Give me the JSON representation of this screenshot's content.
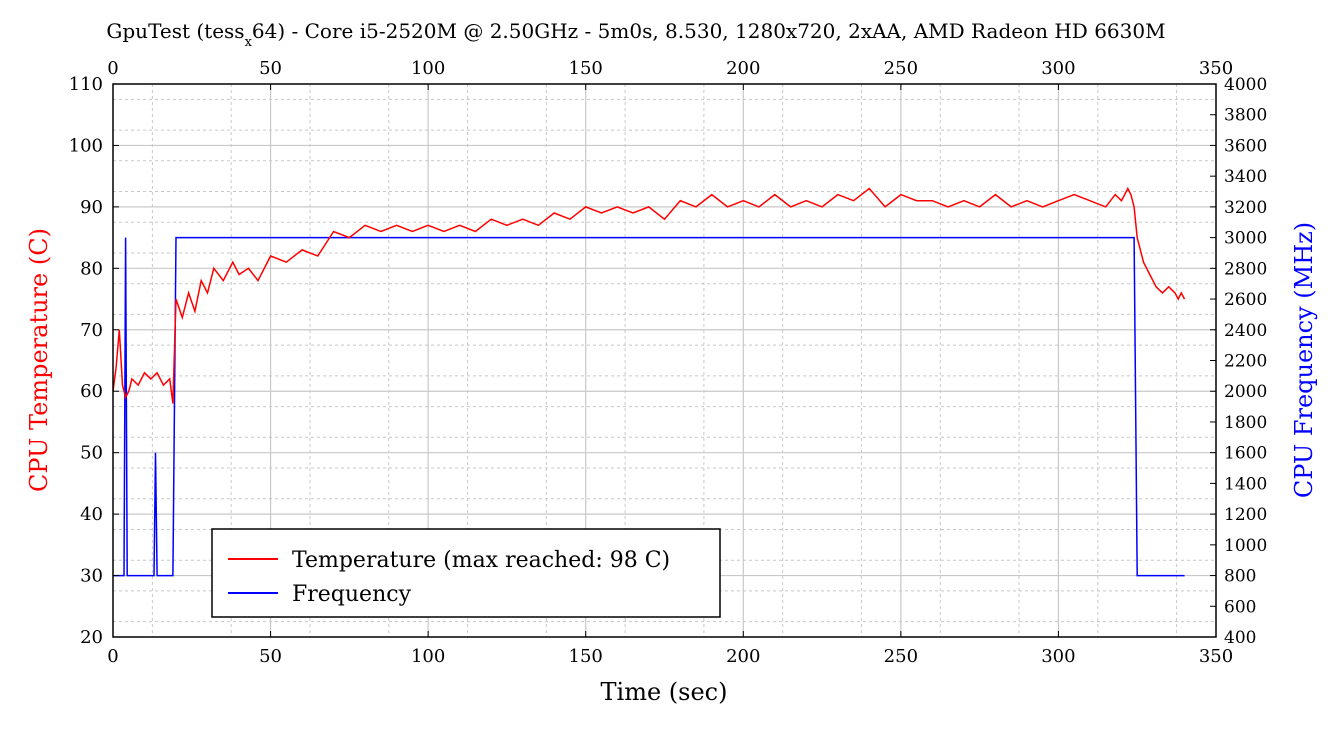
{
  "chart_data": {
    "type": "line",
    "title": {
      "prefix": "GpuTest (tess",
      "subscript": "x",
      "suffix": "64) - Core i5-2520M @ 2.50GHz - 5m0s, 8.530, 1280x720, 2xAA, AMD Radeon HD 6630M"
    },
    "xlabel": "Time (sec)",
    "ylabel_left": "CPU Temperature (C)",
    "ylabel_right": "CPU Frequency (MHz)",
    "xlim": [
      0,
      350
    ],
    "ylim_left": [
      20,
      110
    ],
    "ylim_right": [
      400,
      4000
    ],
    "x_ticks": [
      "0",
      "50",
      "100",
      "150",
      "200",
      "250",
      "300",
      "350"
    ],
    "x_top_ticks": [
      "0",
      "50",
      "100",
      "150",
      "200",
      "250",
      "300",
      "350"
    ],
    "y_left_ticks": [
      "20",
      "30",
      "40",
      "50",
      "60",
      "70",
      "80",
      "90",
      "100",
      "110"
    ],
    "y_right_ticks": [
      "400",
      "600",
      "800",
      "1000",
      "1200",
      "1400",
      "1600",
      "1800",
      "2000",
      "2200",
      "2400",
      "2600",
      "2800",
      "3000",
      "3200",
      "3400",
      "3600",
      "3800",
      "4000"
    ],
    "grid": true,
    "legend_position": "lower-left",
    "colors": {
      "temperature": "#ff0000",
      "frequency": "#0000ff",
      "major_grid": "#c8c8c8",
      "minor_grid": "#c8c8c8"
    },
    "series": [
      {
        "name": "Temperature (max reached: 98 C)",
        "axis": "left",
        "x": [
          0,
          1,
          2,
          3,
          4,
          5,
          6,
          8,
          10,
          12,
          14,
          16,
          18,
          19,
          20,
          22,
          24,
          26,
          28,
          30,
          32,
          35,
          38,
          40,
          43,
          46,
          50,
          55,
          60,
          65,
          70,
          75,
          80,
          85,
          90,
          95,
          100,
          105,
          110,
          115,
          120,
          125,
          130,
          135,
          140,
          145,
          150,
          155,
          160,
          165,
          170,
          175,
          180,
          185,
          190,
          195,
          200,
          205,
          210,
          215,
          220,
          225,
          230,
          235,
          240,
          245,
          250,
          255,
          260,
          265,
          270,
          275,
          280,
          285,
          290,
          295,
          300,
          305,
          310,
          315,
          318,
          320,
          322,
          323,
          324,
          325,
          327,
          329,
          331,
          333,
          335,
          337,
          338,
          339,
          340
        ],
        "values": [
          60,
          64,
          70,
          61,
          59,
          60,
          62,
          61,
          63,
          62,
          63,
          61,
          62,
          58,
          75,
          72,
          76,
          73,
          78,
          76,
          80,
          78,
          81,
          79,
          80,
          78,
          82,
          81,
          83,
          82,
          86,
          85,
          87,
          86,
          87,
          86,
          87,
          86,
          87,
          86,
          88,
          87,
          88,
          87,
          89,
          88,
          90,
          89,
          90,
          89,
          90,
          88,
          91,
          90,
          92,
          90,
          91,
          90,
          92,
          90,
          91,
          90,
          92,
          91,
          93,
          90,
          92,
          91,
          91,
          90,
          91,
          90,
          92,
          90,
          91,
          90,
          91,
          92,
          91,
          90,
          92,
          91,
          93,
          92,
          90,
          85,
          81,
          79,
          77,
          76,
          77,
          76,
          75,
          76,
          75
        ]
      },
      {
        "name": "Frequency",
        "axis": "right",
        "segments": [
          [
            0,
            800
          ],
          [
            3.5,
            800
          ],
          [
            4,
            3000
          ],
          [
            4.5,
            800
          ],
          [
            13,
            800
          ],
          [
            13.5,
            1600
          ],
          [
            14,
            800
          ],
          [
            19,
            800
          ],
          [
            20,
            3000
          ],
          [
            24,
            3000
          ],
          [
            140,
            3000
          ],
          [
            324,
            3000
          ],
          [
            325,
            800
          ],
          [
            340,
            800
          ]
        ]
      }
    ]
  }
}
